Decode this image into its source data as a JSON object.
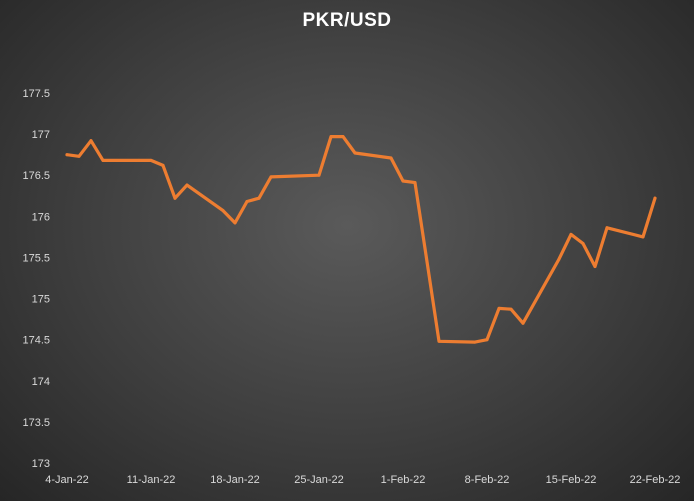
{
  "chart_data": {
    "type": "line",
    "title": "PKR/USD",
    "xlabel": "",
    "ylabel": "",
    "ylim": [
      173,
      177.5
    ],
    "yticks": [
      "173",
      "173.5",
      "174",
      "174.5",
      "175",
      "175.5",
      "176",
      "176.5",
      "177",
      "177.5"
    ],
    "xlim": [
      "2022-01-04",
      "2022-02-22"
    ],
    "xticks": [
      {
        "date": "2022-01-04",
        "label": "4-Jan-22"
      },
      {
        "date": "2022-01-11",
        "label": "11-Jan-22"
      },
      {
        "date": "2022-01-18",
        "label": "18-Jan-22"
      },
      {
        "date": "2022-01-25",
        "label": "25-Jan-22"
      },
      {
        "date": "2022-02-01",
        "label": "1-Feb-22"
      },
      {
        "date": "2022-02-08",
        "label": "8-Feb-22"
      },
      {
        "date": "2022-02-15",
        "label": "15-Feb-22"
      },
      {
        "date": "2022-02-22",
        "label": "22-Feb-22"
      }
    ],
    "grid": false,
    "legend": "none",
    "line_color": "#ED7D31",
    "x": [
      "2022-01-04",
      "2022-01-05",
      "2022-01-06",
      "2022-01-07",
      "2022-01-10",
      "2022-01-11",
      "2022-01-12",
      "2022-01-13",
      "2022-01-14",
      "2022-01-17",
      "2022-01-18",
      "2022-01-19",
      "2022-01-20",
      "2022-01-21",
      "2022-01-25",
      "2022-01-26",
      "2022-01-27",
      "2022-01-28",
      "2022-01-31",
      "2022-02-01",
      "2022-02-02",
      "2022-02-03",
      "2022-02-04",
      "2022-02-07",
      "2022-02-08",
      "2022-02-09",
      "2022-02-10",
      "2022-02-11",
      "2022-02-14",
      "2022-02-15",
      "2022-02-16",
      "2022-02-17",
      "2022-02-18",
      "2022-02-21",
      "2022-02-22"
    ],
    "series": [
      {
        "values": [
          176.75,
          176.73,
          176.92,
          176.68,
          176.68,
          176.68,
          176.62,
          176.22,
          176.38,
          176.07,
          175.92,
          176.18,
          176.22,
          176.48,
          176.5,
          176.97,
          176.97,
          176.77,
          176.71,
          176.43,
          176.41,
          175.45,
          174.48,
          174.47,
          174.5,
          174.88,
          174.87,
          174.7,
          175.48,
          175.78,
          175.67,
          175.39,
          175.86,
          175.75,
          176.22
        ]
      }
    ]
  }
}
